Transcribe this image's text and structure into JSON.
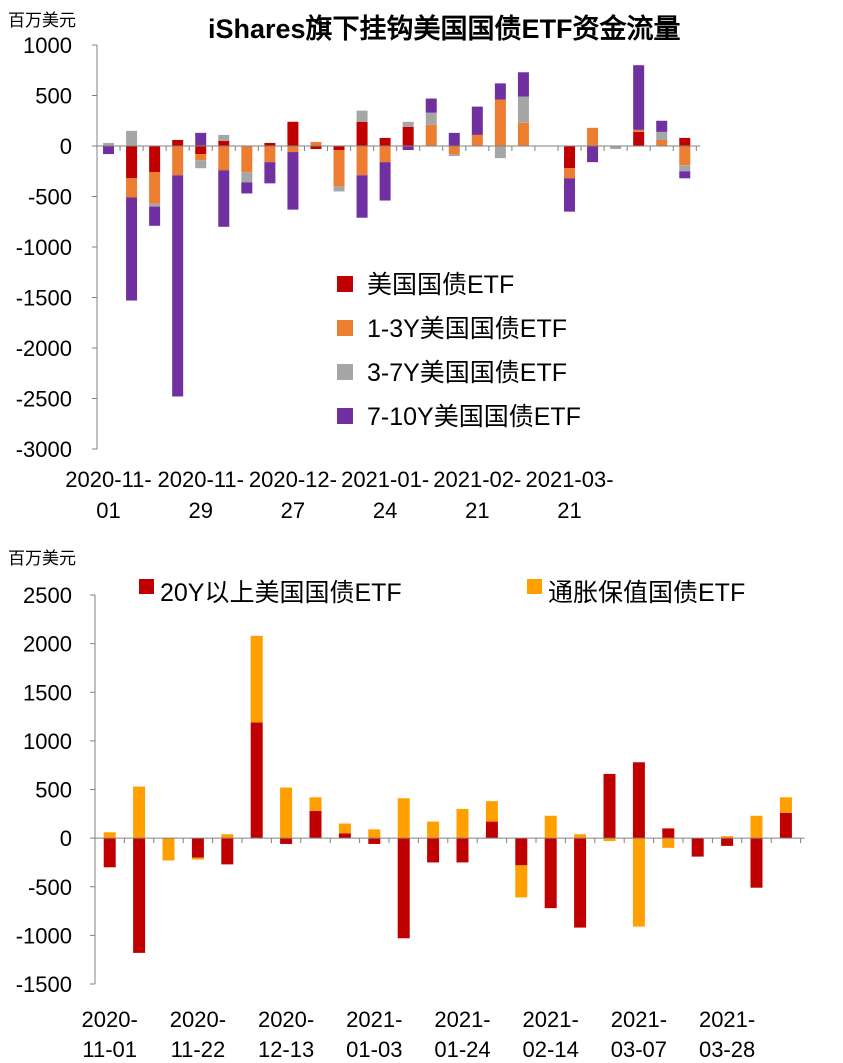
{
  "colors": {
    "treasury": "#c00000",
    "y1_3": "#ed7d31",
    "y3_7": "#a6a6a6",
    "y7_10": "#7030a0",
    "y20plus": "#c00000",
    "tips": "#ffa000",
    "axis": "#808080"
  },
  "chart_data": [
    {
      "type": "bar",
      "stacked": true,
      "title": "iShares旗下挂钩美国国债ETF资金流量",
      "unit_label": "百万美元",
      "ylim": [
        -3000,
        1000
      ],
      "yticks": [
        1000,
        500,
        0,
        -500,
        -1000,
        -1500,
        -2000,
        -2500,
        -3000
      ],
      "x_tick_labels": [
        {
          "line1": "2020-11-",
          "line2": "01",
          "index": 0
        },
        {
          "line1": "2020-11-",
          "line2": "29",
          "index": 4
        },
        {
          "line1": "2020-12-",
          "line2": "27",
          "index": 8
        },
        {
          "line1": "2021-01-",
          "line2": "24",
          "index": 12
        },
        {
          "line1": "2021-02-",
          "line2": "21",
          "index": 16
        },
        {
          "line1": "2021-03-",
          "line2": "21",
          "index": 20
        }
      ],
      "legend_position": "middle-right",
      "series": [
        {
          "name": "美国国债ETF",
          "color_key": "treasury",
          "values": [
            0,
            -320,
            -260,
            60,
            -80,
            50,
            0,
            30,
            240,
            -30,
            -40,
            240,
            80,
            190,
            0,
            0,
            0,
            0,
            0,
            0,
            -220,
            0,
            0,
            140,
            0,
            80
          ]
        },
        {
          "name": "1-3Y美国国债ETF",
          "color_key": "y1_3",
          "values": [
            0,
            -190,
            -310,
            -290,
            -60,
            -240,
            -260,
            -160,
            -60,
            40,
            -360,
            -290,
            -160,
            0,
            210,
            -80,
            110,
            460,
            230,
            0,
            -100,
            180,
            0,
            20,
            60,
            -190
          ]
        },
        {
          "name": "3-7Y美国国债ETF",
          "color_key": "y3_7",
          "values": [
            30,
            150,
            -30,
            0,
            -80,
            60,
            -100,
            0,
            0,
            0,
            -50,
            110,
            0,
            50,
            120,
            -20,
            0,
            -120,
            260,
            0,
            0,
            0,
            -30,
            0,
            80,
            -60
          ]
        },
        {
          "name": "7-10Y美国国债ETF",
          "color_key": "y7_10",
          "values": [
            -80,
            -1020,
            -190,
            -2190,
            130,
            -560,
            -110,
            -210,
            -570,
            0,
            0,
            -420,
            -380,
            -40,
            140,
            130,
            280,
            160,
            240,
            0,
            -330,
            -160,
            0,
            640,
            110,
            -70
          ]
        }
      ]
    },
    {
      "type": "bar",
      "stacked": true,
      "unit_label": "百万美元",
      "ylim": [
        -1500,
        2500
      ],
      "yticks": [
        2500,
        2000,
        1500,
        1000,
        500,
        0,
        -500,
        -1000,
        -1500
      ],
      "x_tick_labels": [
        {
          "line1": "2020-",
          "line2": "11-01",
          "index": 0
        },
        {
          "line1": "2020-",
          "line2": "11-22",
          "index": 3
        },
        {
          "line1": "2020-",
          "line2": "12-13",
          "index": 6
        },
        {
          "line1": "2021-",
          "line2": "01-03",
          "index": 9
        },
        {
          "line1": "2021-",
          "line2": "01-24",
          "index": 12
        },
        {
          "line1": "2021-",
          "line2": "02-14",
          "index": 15
        },
        {
          "line1": "2021-",
          "line2": "03-07",
          "index": 18
        },
        {
          "line1": "2021-",
          "line2": "03-28",
          "index": 21
        }
      ],
      "legend_position": "top",
      "series": [
        {
          "name": "20Y以上美国国债ETF",
          "color_key": "y20plus",
          "values": [
            -300,
            -1180,
            0,
            -200,
            -270,
            1190,
            -60,
            280,
            50,
            -60,
            -1030,
            -250,
            -250,
            170,
            -280,
            -720,
            -920,
            660,
            780,
            100,
            -190,
            -80,
            -510,
            260
          ]
        },
        {
          "name": "通胀保值国债ETF",
          "color_key": "tips",
          "values": [
            60,
            530,
            -230,
            -20,
            40,
            890,
            520,
            140,
            100,
            90,
            410,
            170,
            300,
            210,
            -330,
            230,
            40,
            -30,
            -910,
            -100,
            0,
            20,
            230,
            160
          ]
        }
      ]
    }
  ]
}
